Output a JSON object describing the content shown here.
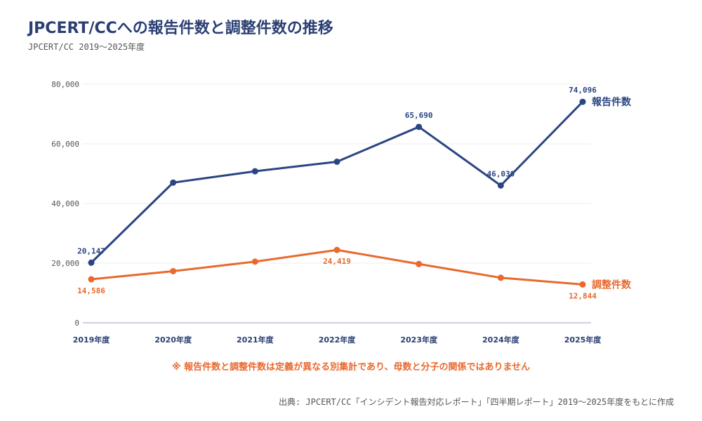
{
  "title": "JPCERT/CCへの報告件数と調整件数の推移",
  "subtitle": "JPCERT/CC 2019～2025年度",
  "note": "※ 報告件数と調整件数は定義が異なる別集計であり、母数と分子の関係ではありません",
  "source": "出典: JPCERT/CC「インシデント報告対応レポート」「四半期レポート」2019～2025年度をもとに作成",
  "chart_data": {
    "type": "line",
    "title": "JPCERT/CCへの報告件数と調整件数の推移",
    "subtitle": "JPCERT/CC 2019～2025年度",
    "xlabel": "",
    "ylabel": "",
    "categories": [
      "2019年度",
      "2020年度",
      "2021年度",
      "2022年度",
      "2023年度",
      "2024年度",
      "2025年度"
    ],
    "ylim": [
      0,
      80000
    ],
    "yticks": [
      "0",
      "20,000",
      "40,000",
      "60,000",
      "80,000"
    ],
    "grid": true,
    "legend": "end-of-line labels",
    "series": [
      {
        "name": "報告件数",
        "color": "#2b4583",
        "values": [
          20147,
          47000,
          50800,
          54000,
          65690,
          46030,
          74096
        ],
        "labels": [
          "20,147",
          "",
          "",
          "",
          "65,690",
          "46,030",
          "74,096"
        ],
        "label_pos": [
          "above",
          "",
          "",
          "",
          "above",
          "above",
          "above"
        ]
      },
      {
        "name": "調整件数",
        "color": "#e8692e",
        "values": [
          14586,
          17300,
          20500,
          24419,
          19700,
          15100,
          12844
        ],
        "labels": [
          "14,586",
          "",
          "",
          "24,419",
          "",
          "",
          "12,844"
        ],
        "label_pos": [
          "below",
          "",
          "",
          "below",
          "",
          "",
          "below"
        ]
      }
    ]
  }
}
